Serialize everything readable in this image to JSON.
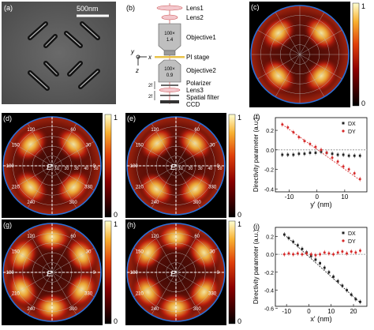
{
  "panels": {
    "a": {
      "label": "(a)",
      "scalebar": "500nm"
    },
    "b": {
      "label": "(b)",
      "components": [
        "Lens1",
        "Lens2",
        "Objective1",
        "PI stage",
        "Objective2",
        "Polarizer",
        "Lens3",
        "Spatial filter",
        "CCD"
      ],
      "obj1_text": [
        "100×",
        "1.4"
      ],
      "obj2_text": [
        "100×",
        "0.9"
      ],
      "axes": {
        "y": "y",
        "x": "x",
        "z": "z"
      },
      "focal": "2f"
    },
    "c": {
      "label": "(c)",
      "colorbar": {
        "max": "1",
        "min": "0"
      }
    },
    "d": {
      "label": "(d)",
      "colorbar": {
        "max": "1",
        "min": "0"
      },
      "e_label": "E",
      "angles": [
        "120",
        "60",
        "150",
        "30",
        "180",
        "0",
        "210",
        "330",
        "240",
        "300"
      ],
      "radii": [
        "10",
        "20",
        "30",
        "40",
        "50"
      ]
    },
    "e": {
      "label": "(e)",
      "colorbar": {
        "max": "1",
        "min": "0"
      },
      "e_label": "E",
      "angles": [
        "120",
        "60",
        "150",
        "30",
        "180",
        "0",
        "210",
        "330",
        "240",
        "300"
      ],
      "radii": [
        "10",
        "20",
        "30",
        "40",
        "50"
      ]
    },
    "g": {
      "label": "(g)",
      "colorbar": {
        "max": "1",
        "min": "0"
      },
      "e_label": "E",
      "angles": [
        "120",
        "60",
        "150",
        "30",
        "180",
        "0",
        "210",
        "330",
        "240",
        "300"
      ]
    },
    "h": {
      "label": "(h)",
      "colorbar": {
        "max": "1",
        "min": "0"
      },
      "e_label": "E",
      "angles": [
        "120",
        "60",
        "150",
        "30",
        "180",
        "0",
        "210",
        "330",
        "240",
        "300"
      ]
    },
    "f": {
      "label": "(f)"
    },
    "i": {
      "label": "(i)"
    }
  },
  "ylabel_shared": "Directivity parameter (a.u.)",
  "chart_data": [
    {
      "type": "scatter",
      "panel": "f",
      "xlabel": "y' (nm)",
      "ylabel": "Directivity parameter (a.u.)",
      "xlim": [
        -15,
        18
      ],
      "ylim": [
        -0.43,
        0.33
      ],
      "xticks": [
        "-10",
        "0",
        "10"
      ],
      "yticks": [
        "0.2",
        "0.0",
        "-0.2",
        "-0.4"
      ],
      "legend": [
        "DX",
        "DY"
      ],
      "legend_position": "top-right",
      "series": [
        {
          "name": "DX",
          "color": "#222222",
          "x": [
            -12.5,
            -10.5,
            -8.5,
            -6.5,
            -4.5,
            -2.5,
            -0.5,
            1.5,
            3.5,
            5.5,
            7.5,
            9.5,
            11.5,
            13.5,
            15.5
          ],
          "y": [
            -0.05,
            -0.05,
            -0.05,
            -0.04,
            -0.04,
            -0.03,
            -0.03,
            -0.02,
            -0.03,
            -0.04,
            -0.05,
            -0.05,
            -0.06,
            -0.06,
            -0.06
          ]
        },
        {
          "name": "DY",
          "color": "#d62a2a",
          "x": [
            -12.5,
            -10.5,
            -8.5,
            -6.5,
            -4.5,
            -2.5,
            -0.5,
            1.5,
            3.5,
            5.5,
            7.5,
            9.5,
            11.5,
            13.5,
            15.5
          ],
          "y": [
            0.26,
            0.23,
            0.18,
            0.13,
            0.09,
            0.06,
            0.03,
            0.0,
            -0.03,
            -0.08,
            -0.12,
            -0.17,
            -0.2,
            -0.24,
            -0.3
          ]
        }
      ],
      "fit_lines": [
        {
          "color": "#d62a2a",
          "from": [
            -12.5,
            0.26
          ],
          "to": [
            15.5,
            -0.31
          ]
        },
        {
          "color": "#888888",
          "from": [
            -15,
            0.0
          ],
          "to": [
            18,
            0.0
          ]
        }
      ]
    },
    {
      "type": "scatter",
      "panel": "i",
      "xlabel": "x' (nm)",
      "ylabel": "Directivity parameter (a.u.)",
      "xlim": [
        -15,
        26
      ],
      "ylim": [
        -0.58,
        0.3
      ],
      "xticks": [
        "-10",
        "0",
        "10",
        "20"
      ],
      "yticks": [
        "0.2",
        "0.0",
        "-0.2",
        "-0.4",
        "-0.6"
      ],
      "legend": [
        "DX",
        "DY"
      ],
      "legend_position": "top-right",
      "series": [
        {
          "name": "DX",
          "color": "#222222",
          "x": [
            -11,
            -9,
            -7,
            -5,
            -3,
            -1,
            1,
            3,
            5,
            7,
            9,
            11,
            13,
            15,
            17,
            19,
            21,
            23
          ],
          "y": [
            0.22,
            0.18,
            0.14,
            0.1,
            0.06,
            0.02,
            -0.02,
            -0.06,
            -0.1,
            -0.15,
            -0.2,
            -0.25,
            -0.3,
            -0.35,
            -0.4,
            -0.45,
            -0.5,
            -0.53
          ]
        },
        {
          "name": "DY",
          "color": "#d62a2a",
          "x": [
            -11,
            -9,
            -7,
            -5,
            -3,
            -1,
            1,
            3,
            5,
            7,
            9,
            11,
            13,
            15,
            17,
            19,
            21,
            23
          ],
          "y": [
            0.0,
            0.01,
            0.0,
            0.01,
            0.0,
            0.01,
            0.0,
            -0.01,
            0.0,
            0.02,
            0.01,
            0.0,
            0.02,
            0.03,
            0.01,
            0.03,
            0.02,
            0.04
          ]
        }
      ],
      "fit_lines": [
        {
          "color": "#222222",
          "from": [
            -11,
            0.22
          ],
          "to": [
            23,
            -0.54
          ]
        },
        {
          "color": "#888888",
          "from": [
            -15,
            0.0
          ],
          "to": [
            26,
            0.0
          ]
        }
      ]
    }
  ]
}
